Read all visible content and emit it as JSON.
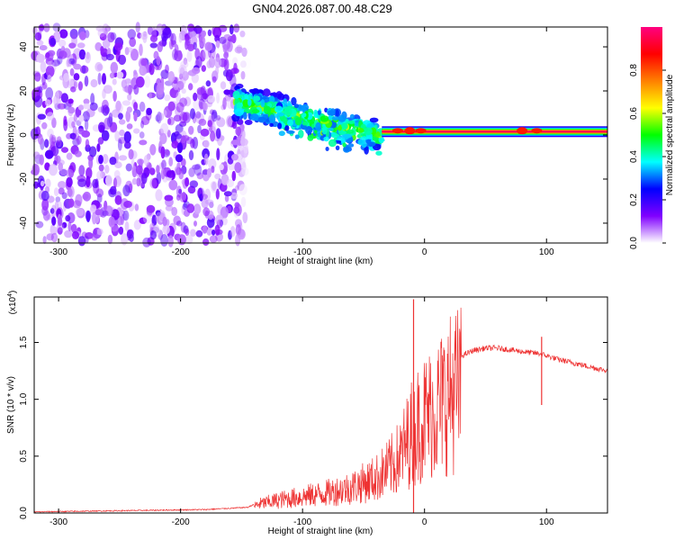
{
  "title": "GN04.2026.087.00.48.C29",
  "chart_data": [
    {
      "type": "heatmap",
      "title": "GN04.2026.087.00.48.C29",
      "xlabel": "Height of straight line (km)",
      "ylabel": "Frequency (Hz)",
      "xlim": [
        -320,
        150
      ],
      "ylim": [
        -49,
        49
      ],
      "xticks": [
        -300,
        -200,
        -100,
        0,
        100
      ],
      "xtick_labels": [
        "-300",
        "-200",
        "-100",
        "0",
        "100"
      ],
      "yticks": [
        -40,
        -20,
        0,
        20,
        40
      ],
      "ytick_labels": [
        "-40",
        "-20",
        "0",
        "20",
        "40"
      ],
      "colorbar": {
        "label": "Normalized spectral amplitude",
        "range": [
          0,
          1
        ],
        "ticks": [
          0.0,
          0.2,
          0.4,
          0.6,
          0.8
        ],
        "tick_labels": [
          "0.0",
          "0.2",
          "0.4",
          "0.6",
          "0.8"
        ],
        "colors": [
          "#ffffff",
          "#8000ff",
          "#0000ff",
          "#00ffff",
          "#00ff00",
          "#ffff00",
          "#ff8000",
          "#ff0000",
          "#ff0080"
        ]
      },
      "regions": [
        {
          "name": "noise",
          "x": [
            -320,
            -145
          ],
          "amplitude": 0.1
        },
        {
          "name": "dispersed-signal",
          "x": [
            -155,
            -35
          ],
          "center_freq": [
            15,
            0
          ],
          "amplitude": 0.35
        },
        {
          "name": "narrow-line",
          "x": [
            -35,
            150
          ],
          "center_freq": 1.5,
          "amplitude": 0.95
        }
      ]
    },
    {
      "type": "line",
      "xlabel": "Height of straight line (km)",
      "ylabel": "SNR (10 * v/v)",
      "multiplier_label": "(x10",
      "multiplier_exp": "4",
      "multiplier_close": ")",
      "xlim": [
        -320,
        150
      ],
      "ylim": [
        0,
        1.9
      ],
      "xticks": [
        -300,
        -200,
        -100,
        0,
        100
      ],
      "xtick_labels": [
        "-300",
        "-200",
        "-100",
        "0",
        "100"
      ],
      "yticks": [
        0.0,
        0.5,
        1.0,
        1.5
      ],
      "ytick_labels": [
        "0.0",
        "0.5",
        "1.0",
        "1.5"
      ],
      "series": [
        {
          "name": "SNR",
          "color": "#ee3333",
          "envelope": {
            "x": [
              -320,
              -250,
              -180,
              -145,
              -135,
              -120,
              -100,
              -80,
              -60,
              -40,
              -30,
              -20,
              -10,
              0,
              10,
              20,
              30,
              40,
              50,
              60,
              80,
              95,
              110,
              130,
              150
            ],
            "y": [
              0.01,
              0.02,
              0.03,
              0.05,
              0.1,
              0.14,
              0.18,
              0.22,
              0.28,
              0.38,
              0.48,
              0.62,
              0.9,
              1.05,
              1.15,
              1.3,
              1.38,
              1.43,
              1.45,
              1.45,
              1.42,
              1.4,
              1.35,
              1.3,
              1.25
            ]
          },
          "spikes": [
            {
              "x": -9,
              "y": 1.88
            },
            {
              "x": -9,
              "y": 0.0
            },
            {
              "x": 96,
              "y": 1.55
            },
            {
              "x": 96,
              "y": 0.95
            }
          ]
        }
      ]
    }
  ]
}
